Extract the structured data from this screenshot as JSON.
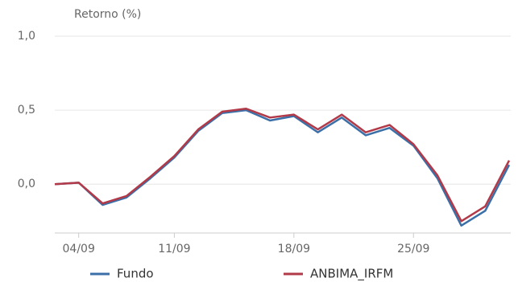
{
  "chart_data": {
    "type": "line",
    "y_label": "Retorno (%)",
    "categories": [
      null,
      "04/09",
      null,
      null,
      null,
      "11/09",
      null,
      null,
      null,
      null,
      "18/09",
      null,
      null,
      null,
      null,
      "25/09",
      null,
      null,
      null,
      null
    ],
    "series": [
      {
        "name": "Fundo",
        "color": "#3b6fa8",
        "values": [
          0,
          0.01,
          -0.14,
          -0.09,
          0.04,
          0.18,
          0.36,
          0.48,
          0.5,
          0.43,
          0.46,
          0.35,
          0.45,
          0.33,
          0.38,
          0.26,
          0.04,
          -0.28,
          -0.18,
          0.13
        ]
      },
      {
        "name": "ANBIMA_IRFM",
        "color": "#b23a48",
        "values": [
          0,
          0.01,
          -0.13,
          -0.08,
          0.05,
          0.19,
          0.37,
          0.49,
          0.51,
          0.45,
          0.47,
          0.37,
          0.47,
          0.35,
          0.4,
          0.27,
          0.06,
          -0.25,
          -0.15,
          0.16
        ]
      }
    ],
    "ylim": [
      -0.33,
      1.0
    ],
    "yticks": [
      {
        "value": 0,
        "label": "0,0"
      },
      {
        "value": 0.5,
        "label": "0,5"
      },
      {
        "value": 1.0,
        "label": "1,0"
      }
    ],
    "grid": true
  }
}
